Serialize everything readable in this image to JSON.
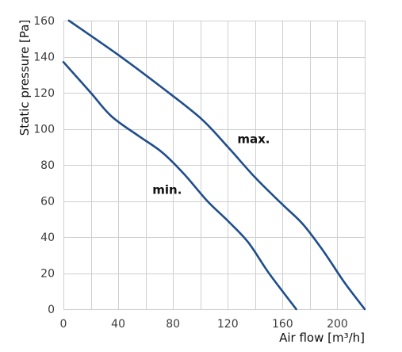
{
  "chart_data": {
    "type": "line",
    "xlabel": "Air flow [m³/h]",
    "ylabel": "Static pressure [Pa]",
    "xlim": [
      0,
      220
    ],
    "ylim": [
      0,
      160
    ],
    "x_ticks": [
      0,
      40,
      80,
      120,
      160,
      200
    ],
    "y_ticks": [
      0,
      20,
      40,
      60,
      80,
      100,
      120,
      140,
      160
    ],
    "x_tick_labels": [
      "0",
      "40",
      "80",
      "120",
      "160",
      "200"
    ],
    "y_tick_labels": [
      "0",
      "20",
      "40",
      "60",
      "80",
      "100",
      "120",
      "140",
      "160"
    ],
    "x_grid_step": 20,
    "y_grid_step": 20,
    "grid": true,
    "line_color": "#1f4e8c",
    "grid_color": "#cfcfcf",
    "series": [
      {
        "name": "max.",
        "label_at": [
          127,
          92
        ],
        "points": [
          [
            4,
            160
          ],
          [
            40,
            141
          ],
          [
            70,
            124
          ],
          [
            100,
            106
          ],
          [
            120,
            90
          ],
          [
            140,
            73
          ],
          [
            160,
            58
          ],
          [
            175,
            47
          ],
          [
            190,
            32
          ],
          [
            205,
            15
          ],
          [
            220,
            0
          ]
        ]
      },
      {
        "name": "min.",
        "label_at": [
          65,
          64
        ],
        "points": [
          [
            0,
            137
          ],
          [
            20,
            120
          ],
          [
            35,
            107
          ],
          [
            55,
            96
          ],
          [
            72,
            87
          ],
          [
            88,
            75
          ],
          [
            105,
            60
          ],
          [
            120,
            49
          ],
          [
            135,
            37
          ],
          [
            150,
            20
          ],
          [
            170,
            0
          ]
        ]
      }
    ]
  }
}
